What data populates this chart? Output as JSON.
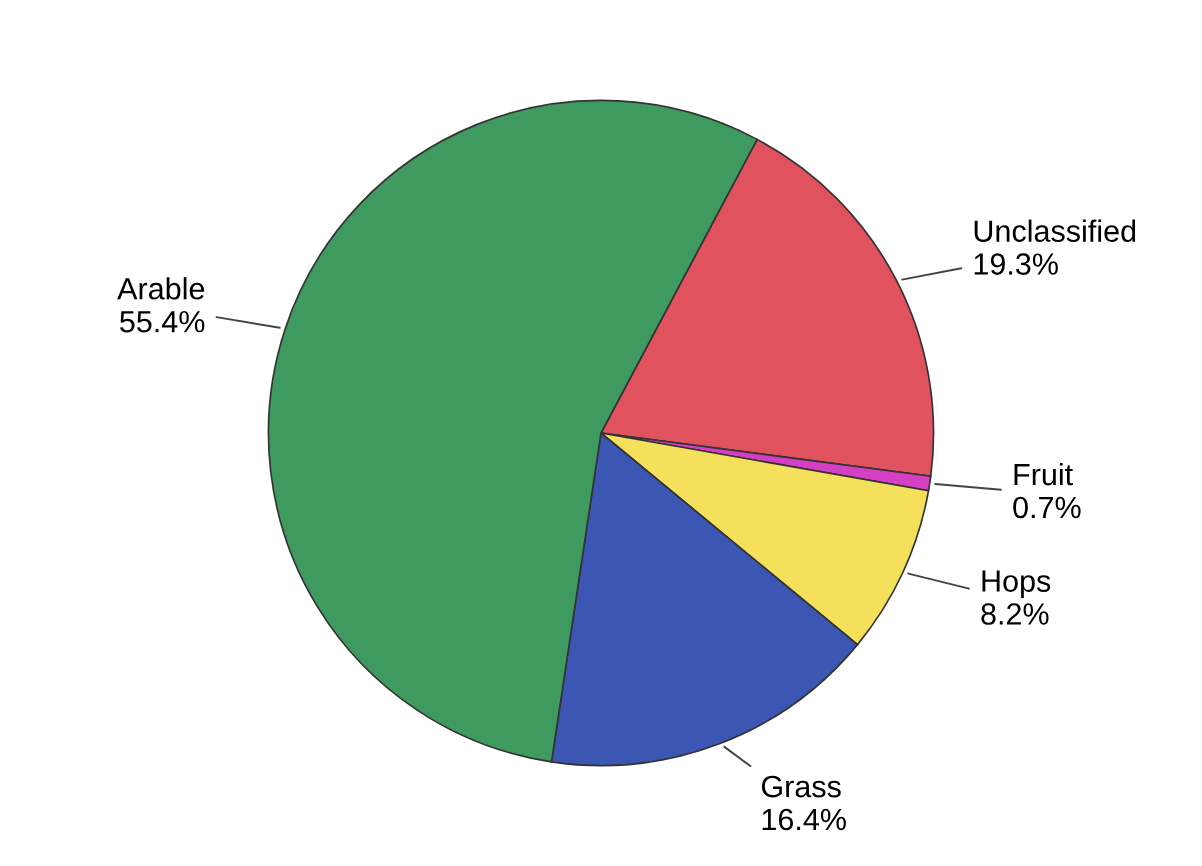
{
  "chart_data": {
    "type": "pie",
    "categories": [
      "Unclassified",
      "Fruit",
      "Hops",
      "Grass",
      "Arable"
    ],
    "values": [
      19.3,
      0.7,
      8.2,
      16.4,
      55.4
    ],
    "value_labels": [
      "19.3%",
      "0.7%",
      "8.2%",
      "16.4%",
      "55.4%"
    ],
    "colors": [
      "#e0525e",
      "#d43fc4",
      "#f4e05a",
      "#3c57b3",
      "#3f9a60"
    ],
    "legend": false
  }
}
